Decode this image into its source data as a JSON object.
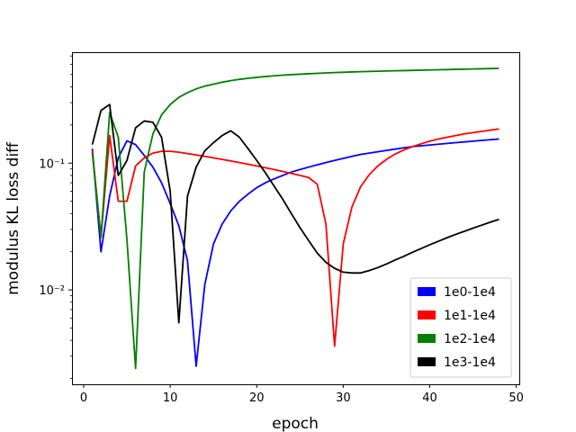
{
  "chart_data": {
    "type": "line",
    "xlabel": "epoch",
    "ylabel": "modulus KL loss diff",
    "xlim": [
      -1.35,
      50.35
    ],
    "ylim": [
      0.0018,
      0.75
    ],
    "yscale": "log",
    "xticks": [
      0,
      10,
      20,
      30,
      40,
      50
    ],
    "xtick_labels": [
      "0",
      "10",
      "20",
      "30",
      "40",
      "50"
    ],
    "yticks": [
      0.01,
      0.1
    ],
    "ytick_labels": [
      "10⁻²",
      "10⁻¹"
    ],
    "grid": false,
    "legend_position": "lower right",
    "x": [
      1,
      2,
      3,
      4,
      5,
      6,
      7,
      8,
      9,
      10,
      11,
      12,
      13,
      14,
      15,
      16,
      17,
      18,
      19,
      20,
      21,
      22,
      23,
      24,
      25,
      26,
      27,
      28,
      29,
      30,
      31,
      32,
      33,
      34,
      35,
      36,
      37,
      38,
      39,
      40,
      41,
      42,
      43,
      44,
      45,
      46,
      47,
      48
    ],
    "series": [
      {
        "name": "1e0-1e4",
        "color": "#0000ff",
        "values": [
          0.13,
          0.02,
          0.055,
          0.11,
          0.15,
          0.14,
          0.115,
          0.093,
          0.07,
          0.048,
          0.032,
          0.017,
          0.0025,
          0.011,
          0.023,
          0.033,
          0.042,
          0.05,
          0.057,
          0.064,
          0.07,
          0.075,
          0.08,
          0.085,
          0.089,
          0.093,
          0.097,
          0.101,
          0.105,
          0.109,
          0.113,
          0.117,
          0.12,
          0.123,
          0.126,
          0.129,
          0.132,
          0.135,
          0.137,
          0.139,
          0.141,
          0.143,
          0.145,
          0.147,
          0.149,
          0.151,
          0.153,
          0.155
        ]
      },
      {
        "name": "1e1-1e4",
        "color": "#ff0000",
        "values": [
          0.125,
          0.026,
          0.165,
          0.05,
          0.05,
          0.095,
          0.11,
          0.12,
          0.124,
          0.124,
          0.122,
          0.119,
          0.116,
          0.113,
          0.11,
          0.107,
          0.104,
          0.101,
          0.098,
          0.095,
          0.092,
          0.089,
          0.086,
          0.083,
          0.08,
          0.077,
          0.068,
          0.033,
          0.0036,
          0.023,
          0.045,
          0.065,
          0.081,
          0.095,
          0.107,
          0.118,
          0.127,
          0.135,
          0.142,
          0.149,
          0.155,
          0.16,
          0.165,
          0.17,
          0.174,
          0.178,
          0.182,
          0.186
        ]
      },
      {
        "name": "1e2-1e4",
        "color": "#008000",
        "values": [
          0.12,
          0.026,
          0.25,
          0.16,
          0.025,
          0.0024,
          0.085,
          0.17,
          0.24,
          0.29,
          0.33,
          0.36,
          0.385,
          0.405,
          0.42,
          0.435,
          0.447,
          0.458,
          0.467,
          0.475,
          0.482,
          0.488,
          0.494,
          0.499,
          0.503,
          0.507,
          0.511,
          0.515,
          0.518,
          0.521,
          0.524,
          0.527,
          0.529,
          0.531,
          0.533,
          0.535,
          0.537,
          0.539,
          0.541,
          0.543,
          0.545,
          0.547,
          0.549,
          0.551,
          0.553,
          0.555,
          0.557,
          0.559
        ]
      },
      {
        "name": "1e3-1e4",
        "color": "#000000",
        "values": [
          0.14,
          0.26,
          0.29,
          0.08,
          0.105,
          0.19,
          0.215,
          0.21,
          0.16,
          0.06,
          0.0055,
          0.055,
          0.093,
          0.125,
          0.145,
          0.165,
          0.18,
          0.16,
          0.13,
          0.105,
          0.084,
          0.066,
          0.052,
          0.04,
          0.031,
          0.0245,
          0.0195,
          0.0165,
          0.0148,
          0.0138,
          0.0136,
          0.0136,
          0.0142,
          0.015,
          0.016,
          0.0172,
          0.0184,
          0.0198,
          0.0212,
          0.0227,
          0.0242,
          0.0258,
          0.0274,
          0.029,
          0.0307,
          0.0324,
          0.0342,
          0.036
        ]
      }
    ]
  }
}
